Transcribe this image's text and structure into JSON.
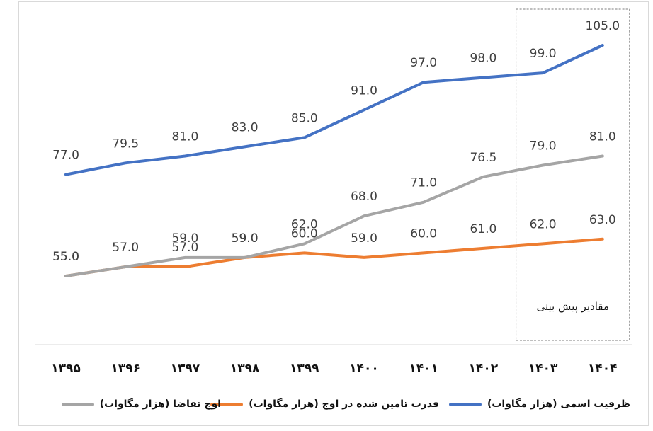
{
  "chart_data": {
    "type": "line",
    "categories": [
      "۱۳۹۵",
      "۱۳۹۶",
      "۱۳۹۷",
      "۱۳۹۸",
      "۱۳۹۹",
      "۱۴۰۰",
      "۱۴۰۱",
      "۱۴۰۲",
      "۱۴۰۳",
      "۱۴۰۴"
    ],
    "series": [
      {
        "name": "ظرفیت اسمی (هزار مگاوات)",
        "color": "#4472c4",
        "values": [
          77.0,
          79.5,
          81.0,
          83.0,
          85.0,
          91.0,
          97.0,
          98.0,
          99.0,
          105.0
        ],
        "labels": [
          "77.0",
          "79.5",
          "81.0",
          "83.0",
          "85.0",
          "91.0",
          "97.0",
          "98.0",
          "99.0",
          "105.0"
        ]
      },
      {
        "name": "قدرت تامین شده در اوج (هزار مگاوات)",
        "color": "#ed7d31",
        "values": [
          55.0,
          57.0,
          57.0,
          59.0,
          60.0,
          59.0,
          60.0,
          61.0,
          62.0,
          63.0
        ],
        "labels": [
          "55.0",
          "57.0",
          "57.0",
          "59.0",
          "60.0",
          "59.0",
          "60.0",
          "61.0",
          "62.0",
          "63.0"
        ]
      },
      {
        "name": "اوج تقاضا (هزار مگاوات)",
        "color": "#a5a5a5",
        "values": [
          55.0,
          57.0,
          59.0,
          59.0,
          62.0,
          68.0,
          71.0,
          76.5,
          79.0,
          81.0
        ],
        "labels": [
          "55.0",
          "57.0",
          "59.0",
          "59.0",
          "62.0",
          "68.0",
          "71.0",
          "76.5",
          "79.0",
          "81.0"
        ]
      }
    ],
    "annotation": {
      "text": "مقادیر پیش بینی",
      "range": [
        "۱۴۰۳",
        "۱۴۰۴"
      ]
    },
    "ylim": [
      50,
      108
    ],
    "grid": false,
    "legend_position": "bottom"
  }
}
